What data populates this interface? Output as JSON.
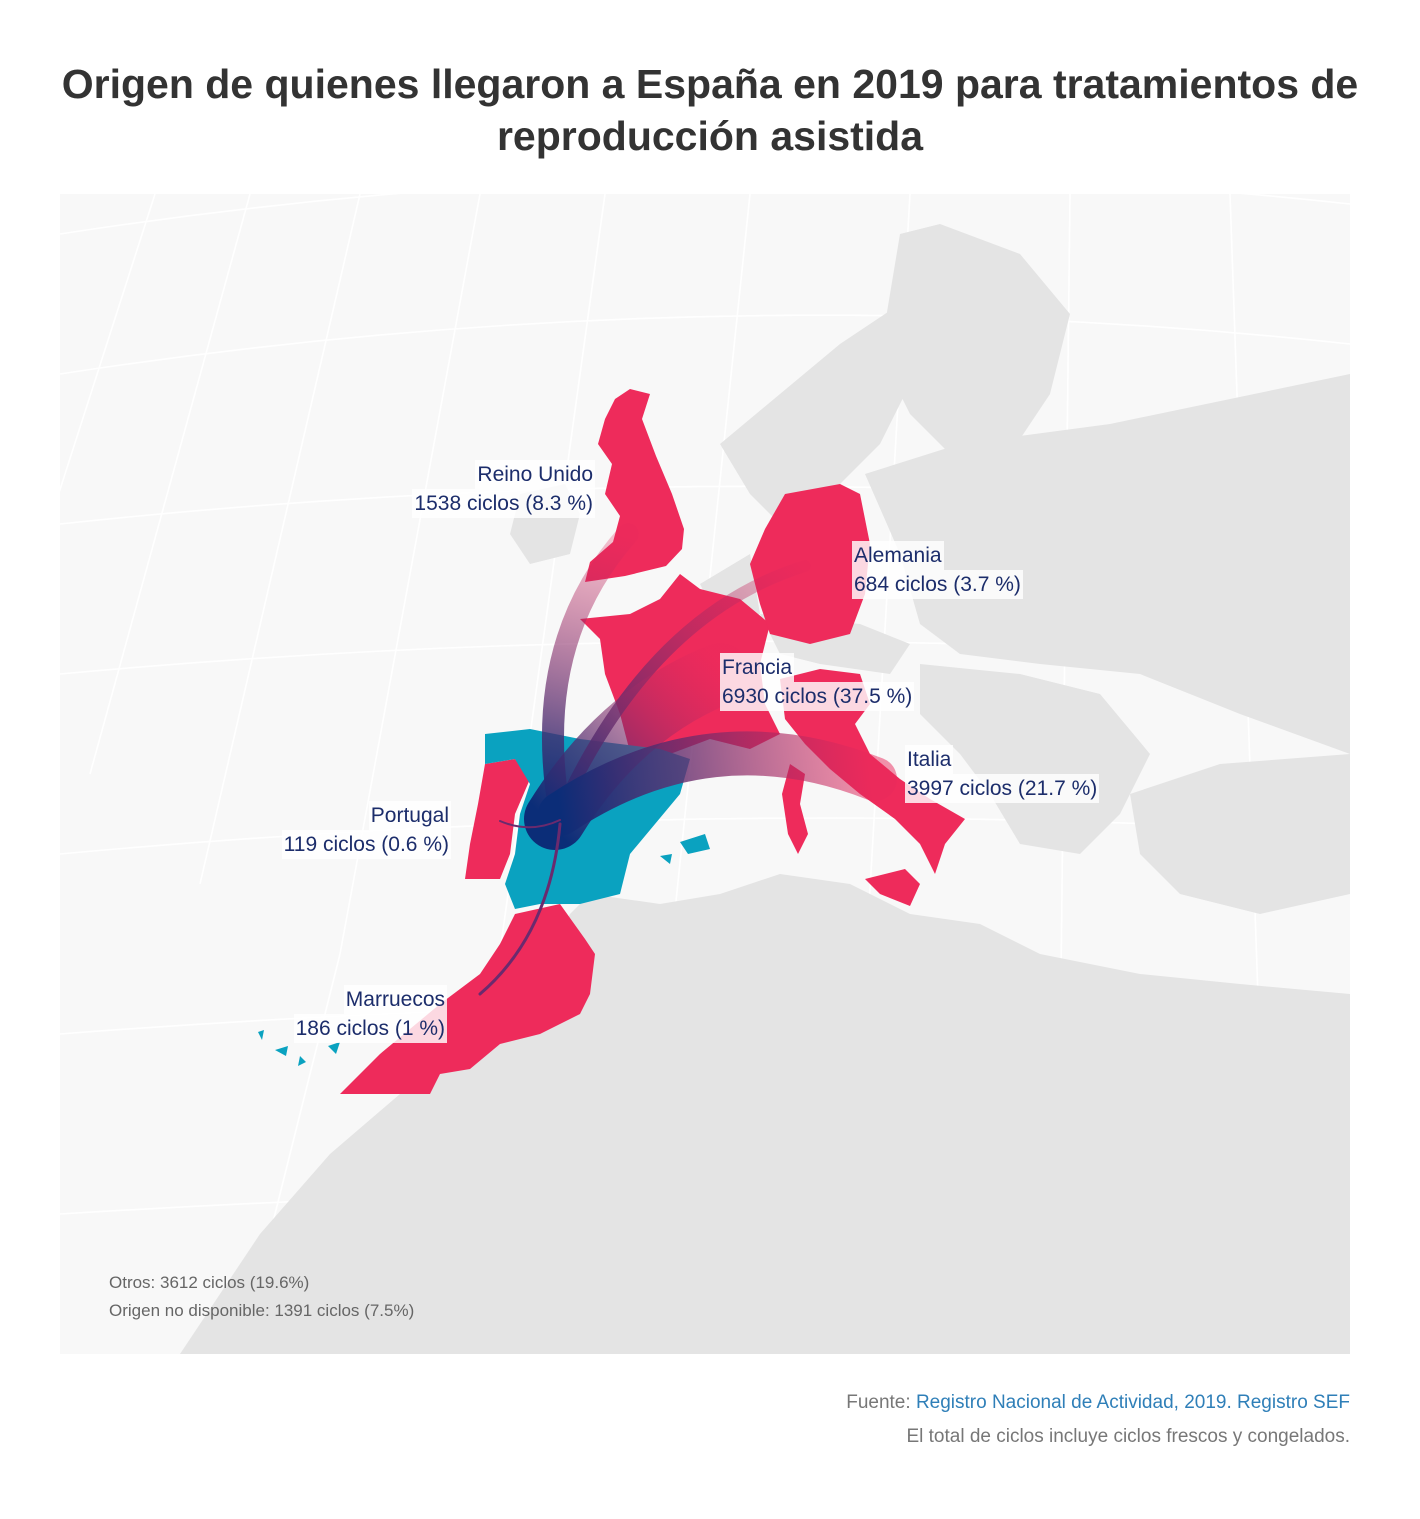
{
  "title": "Origen de quienes llegaron a España en 2019 para tratamientos de reproducción asistida",
  "colors": {
    "origin_country": "#ee2b5b",
    "destination_spain": "#0aa2c0",
    "land": "#e4e4e4",
    "sea": "#f8f8f8",
    "flow_start": "#e8295b",
    "flow_end": "#0b2d78",
    "label_text": "#1c2d6b"
  },
  "flows": [
    {
      "country": "Reino Unido",
      "cycles_label": "1538 ciclos (8.3 %)",
      "cycles": 1538,
      "share_pct": 8.3
    },
    {
      "country": "Alemania",
      "cycles_label": "684 ciclos (3.7 %)",
      "cycles": 684,
      "share_pct": 3.7
    },
    {
      "country": "Francia",
      "cycles_label": "6930 ciclos (37.5 %)",
      "cycles": 6930,
      "share_pct": 37.5
    },
    {
      "country": "Italia",
      "cycles_label": "3997 ciclos (21.7 %)",
      "cycles": 3997,
      "share_pct": 21.7
    },
    {
      "country": "Portugal",
      "cycles_label": "119 ciclos (0.6 %)",
      "cycles": 119,
      "share_pct": 0.6
    },
    {
      "country": "Marruecos",
      "cycles_label": "186 ciclos (1 %)",
      "cycles": 186,
      "share_pct": 1.0
    }
  ],
  "notes": {
    "otros": "Otros: 3612 ciclos (19.6%)",
    "no_disponible": "Origen no disponible: 1391 ciclos (7.5%)"
  },
  "footer": {
    "source_prefix": "Fuente: ",
    "source_link": "Registro Nacional de Actividad, 2019. Registro SEF",
    "note": "El total de ciclos incluye ciclos frescos y congelados."
  }
}
